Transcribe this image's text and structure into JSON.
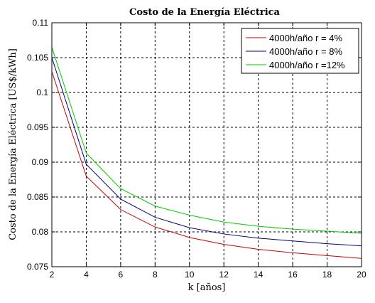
{
  "chart_data": {
    "type": "line",
    "title": "Costo de la Energía Eléctrica",
    "xlabel": "k [años]",
    "ylabel": "Costo de la Energía Eléctrica [US$/kWh]",
    "xlim": [
      2,
      20
    ],
    "ylim": [
      0.075,
      0.11
    ],
    "xticks": [
      2,
      4,
      6,
      8,
      10,
      12,
      14,
      16,
      18,
      20
    ],
    "yticks": [
      0.075,
      0.08,
      0.085,
      0.09,
      0.095,
      0.1,
      0.105,
      0.11
    ],
    "ytick_labels": [
      "0.075",
      "0.08",
      "0.085",
      "0.09",
      "0.095",
      "0.1",
      "0.105",
      "0.11"
    ],
    "grid": true,
    "legend_position": "top-right",
    "x": [
      2,
      4,
      6,
      8,
      10,
      12,
      14,
      16,
      18,
      20
    ],
    "series": [
      {
        "name": "4000h/año r = 4%",
        "color": "#cc0000",
        "values": [
          0.103,
          0.088,
          0.0832,
          0.0807,
          0.0792,
          0.0782,
          0.0775,
          0.077,
          0.0766,
          0.0762
        ]
      },
      {
        "name": "4000h/año r = 8%",
        "color": "#000080",
        "values": [
          0.105,
          0.0897,
          0.0847,
          0.0821,
          0.0806,
          0.0797,
          0.0791,
          0.0787,
          0.0783,
          0.078
        ]
      },
      {
        "name": "4000h/año r =12%",
        "color": "#00cc00",
        "values": [
          0.1065,
          0.0913,
          0.0862,
          0.0837,
          0.0824,
          0.0814,
          0.0808,
          0.0804,
          0.0801,
          0.0798
        ]
      }
    ]
  }
}
